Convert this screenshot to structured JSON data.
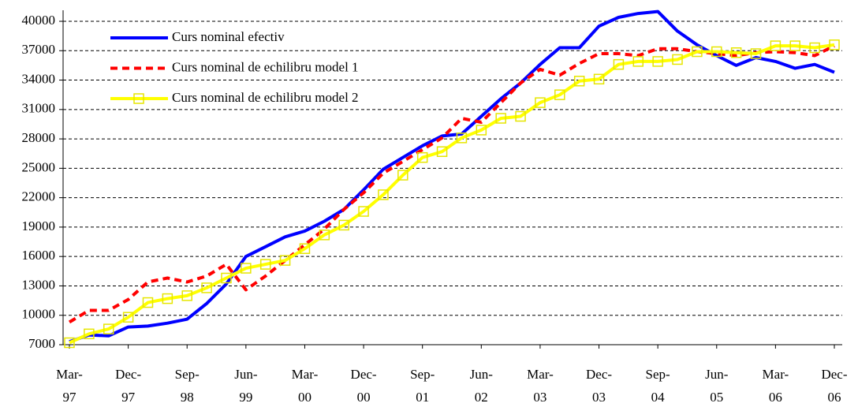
{
  "chart_data": {
    "type": "line",
    "categories": [
      "Mar-97",
      null,
      null,
      "Dec-97",
      null,
      null,
      "Sep-98",
      null,
      null,
      "Jun-99",
      null,
      null,
      "Mar-00",
      null,
      null,
      "Dec-00",
      null,
      null,
      "Sep-01",
      null,
      null,
      "Jun-02",
      null,
      null,
      "Mar-03",
      null,
      null,
      "Dec-03",
      null,
      null,
      "Sep-04",
      null,
      null,
      "Jun-05",
      null,
      null,
      "Mar-06",
      null,
      null,
      "Dec-06"
    ],
    "series": [
      {
        "name": "Curs nominal efectiv",
        "color": "#0000ff",
        "line_style": "solid",
        "marker": "none",
        "values": [
          7300,
          8000,
          7900,
          8800,
          8900,
          9200,
          9600,
          11200,
          13200,
          16000,
          17000,
          18000,
          18600,
          19600,
          20800,
          22800,
          24900,
          26100,
          27300,
          28300,
          28500,
          30300,
          32100,
          33700,
          35600,
          37300,
          37300,
          39500,
          40400,
          40800,
          41000,
          39000,
          37600,
          36500,
          35500,
          36300,
          35900,
          35200,
          35600,
          34800
        ]
      },
      {
        "name": "Curs nominal de echilibru model 1",
        "color": "#ff0000",
        "line_style": "dashed",
        "marker": "none",
        "values": [
          9300,
          10500,
          10500,
          11600,
          13400,
          13800,
          13400,
          14000,
          15200,
          12600,
          14000,
          15600,
          17200,
          18800,
          20800,
          22500,
          24500,
          25700,
          26900,
          28100,
          30100,
          29700,
          31700,
          33700,
          35100,
          34500,
          35700,
          36700,
          36700,
          36500,
          37200,
          37200,
          36900,
          36700,
          36500,
          36800,
          36900,
          36800,
          36500,
          37500
        ]
      },
      {
        "name": "Curs nominal de echilibru model 2",
        "color": "#ffff00",
        "line_style": "solid",
        "marker": "square",
        "values": [
          7200,
          8100,
          8600,
          9800,
          11300,
          11700,
          12000,
          12800,
          13800,
          14800,
          15200,
          15600,
          16800,
          18200,
          19200,
          20600,
          22300,
          24300,
          26100,
          26700,
          28100,
          28900,
          30100,
          30300,
          31700,
          32500,
          33900,
          34100,
          35600,
          35900,
          35900,
          36100,
          36900,
          36900,
          36800,
          36700,
          37500,
          37500,
          37300,
          37600
        ]
      }
    ],
    "ylim": [
      7000,
      40000
    ],
    "yticks": [
      7000,
      10000,
      13000,
      16000,
      19000,
      22000,
      25000,
      28000,
      31000,
      34000,
      37000,
      40000
    ],
    "grid": true,
    "legend": "upper left"
  }
}
